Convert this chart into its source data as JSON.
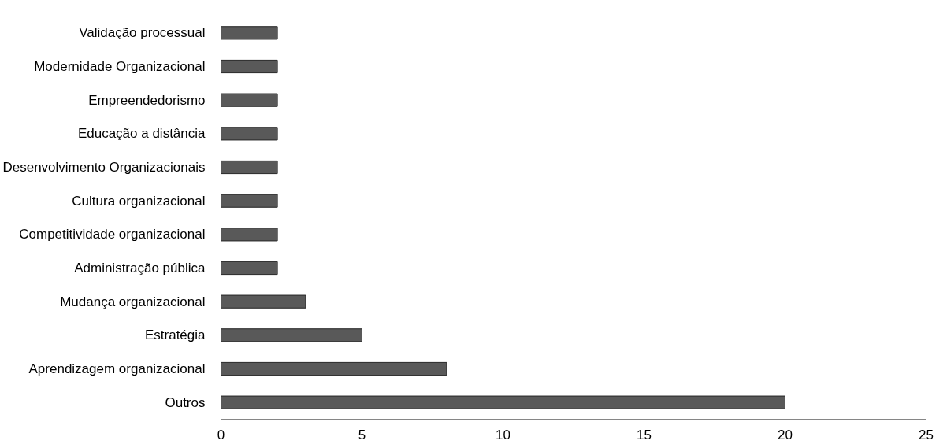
{
  "chart_data": {
    "type": "bar",
    "orientation": "horizontal",
    "categories": [
      "Validação processual",
      "Modernidade Organizacional",
      "Empreendedorismo",
      "Educação a distância",
      "Desenvolvimento Organizacionais",
      "Cultura organizacional",
      "Competitividade organizacional",
      "Administração pública",
      "Mudança organizacional",
      "Estratégia",
      "Aprendizagem organizacional",
      "Outros"
    ],
    "values": [
      2,
      2,
      2,
      2,
      2,
      2,
      2,
      2,
      3,
      5,
      8,
      20
    ],
    "color": "#595959",
    "xlim": [
      0,
      25
    ],
    "xticks": [
      0,
      5,
      10,
      15,
      20,
      25
    ],
    "grid": "x"
  }
}
